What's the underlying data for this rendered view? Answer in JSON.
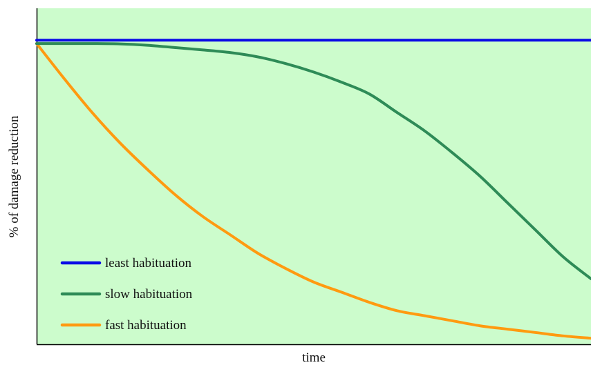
{
  "chart_data": {
    "type": "line",
    "title": "",
    "xlabel": "time",
    "ylabel": "% of damage reduction",
    "xlim": [
      0,
      1
    ],
    "ylim": [
      0,
      1
    ],
    "grid": false,
    "legend_position": "bottom-left",
    "background_color": "#ccfccc",
    "x": [
      0,
      0.05,
      0.1,
      0.15,
      0.2,
      0.25,
      0.3,
      0.35,
      0.4,
      0.45,
      0.5,
      0.55,
      0.6,
      0.65,
      0.7,
      0.75,
      0.8,
      0.85,
      0.9,
      0.95,
      1.0
    ],
    "series": [
      {
        "name": "least habituation",
        "color": "#0a0ae6",
        "values": [
          0.905,
          0.905,
          0.905,
          0.905,
          0.905,
          0.905,
          0.905,
          0.905,
          0.905,
          0.905,
          0.905,
          0.905,
          0.905,
          0.905,
          0.905,
          0.905,
          0.905,
          0.905,
          0.905,
          0.905,
          0.905
        ]
      },
      {
        "name": "slow habituation",
        "color": "#2e8b57",
        "values": [
          0.895,
          0.895,
          0.895,
          0.894,
          0.89,
          0.883,
          0.876,
          0.868,
          0.855,
          0.835,
          0.81,
          0.78,
          0.745,
          0.69,
          0.635,
          0.57,
          0.5,
          0.42,
          0.34,
          0.26,
          0.195
        ]
      },
      {
        "name": "fast habituation",
        "color": "#ff9a10",
        "values": [
          0.895,
          0.79,
          0.69,
          0.6,
          0.52,
          0.445,
          0.38,
          0.325,
          0.27,
          0.225,
          0.185,
          0.155,
          0.125,
          0.1,
          0.085,
          0.07,
          0.055,
          0.045,
          0.035,
          0.025,
          0.018
        ]
      }
    ]
  }
}
